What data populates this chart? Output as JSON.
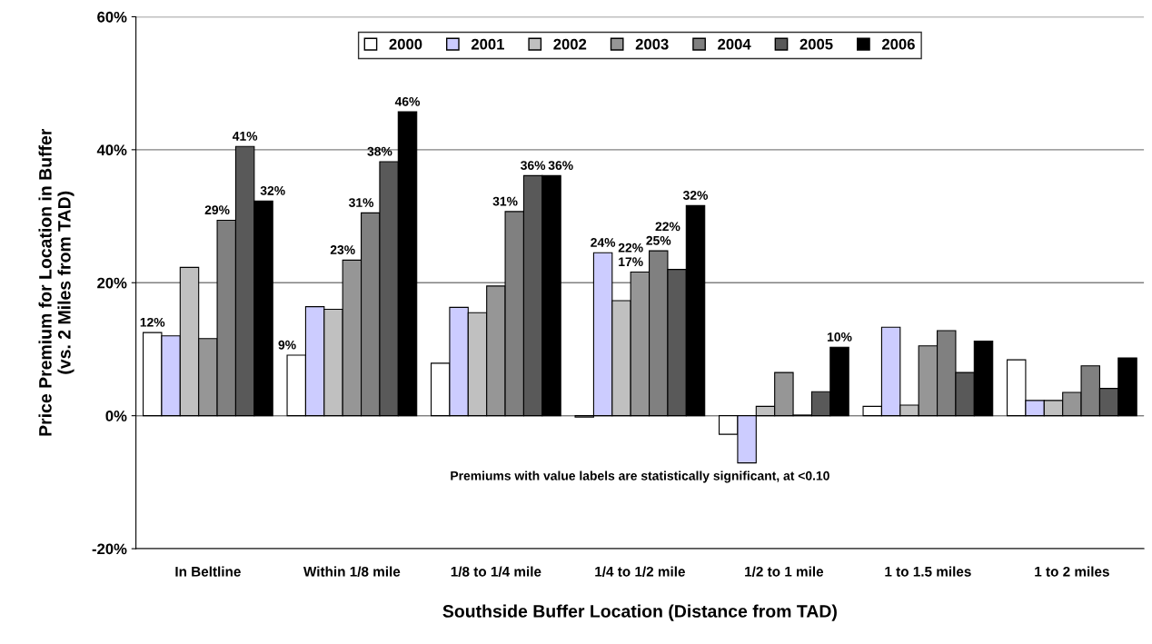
{
  "chart_data": {
    "type": "bar",
    "xlabel": "Southside Buffer Location (Distance from TAD)",
    "ylabel": "Price Premium for Location in Buffer\n(vs. 2 Miles from TAD)",
    "categories": [
      "In Beltline",
      "Within 1/8 mile",
      "1/8 to 1/4 mile",
      "1/4 to 1/2 mile",
      "1/2 to 1 mile",
      "1 to 1.5 miles",
      "1 to 2 miles"
    ],
    "series": [
      {
        "name": "2000",
        "color": "#ffffff",
        "values": [
          12.5,
          9.1,
          7.9,
          -0.2,
          -2.8,
          1.4,
          8.4
        ],
        "value_labels": [
          "12%",
          "9%",
          null,
          null,
          null,
          null,
          null
        ]
      },
      {
        "name": "2001",
        "color": "#ccccff",
        "values": [
          12.0,
          16.4,
          16.3,
          24.5,
          -7.1,
          13.3,
          2.3
        ],
        "value_labels": [
          null,
          null,
          null,
          "24%",
          null,
          null,
          null
        ]
      },
      {
        "name": "2002",
        "color": "#c0c0c0",
        "values": [
          22.3,
          16.0,
          15.5,
          17.3,
          1.4,
          1.6,
          2.3
        ],
        "value_labels": [
          null,
          null,
          null,
          "17%",
          null,
          null,
          null
        ]
      },
      {
        "name": "2003",
        "color": "#969696",
        "values": [
          11.6,
          23.4,
          19.5,
          21.6,
          6.5,
          10.5,
          3.5
        ],
        "value_labels": [
          null,
          "23%",
          null,
          "22%",
          null,
          null,
          null
        ]
      },
      {
        "name": "2004",
        "color": "#808080",
        "values": [
          29.4,
          30.5,
          30.7,
          24.8,
          0.1,
          12.8,
          7.5
        ],
        "value_labels": [
          "29%",
          "31%",
          "31%",
          "25%",
          null,
          null,
          null
        ]
      },
      {
        "name": "2005",
        "color": "#595959",
        "values": [
          40.5,
          38.2,
          36.1,
          22.0,
          3.6,
          6.5,
          4.1
        ],
        "value_labels": [
          "41%",
          "38%",
          "36%",
          "22%",
          null,
          null,
          null
        ]
      },
      {
        "name": "2006",
        "color": "#000000",
        "values": [
          32.3,
          45.7,
          36.1,
          31.6,
          10.3,
          11.2,
          8.7
        ],
        "value_labels": [
          "32%",
          "46%",
          "36%",
          "32%",
          "10%",
          null,
          null
        ]
      }
    ],
    "ylim": [
      -20,
      60
    ],
    "yticks": [
      {
        "value": -20,
        "label": "-20%"
      },
      {
        "value": 0,
        "label": "0%"
      },
      {
        "value": 20,
        "label": "20%"
      },
      {
        "value": 40,
        "label": "40%"
      },
      {
        "value": 60,
        "label": "60%"
      }
    ],
    "grid": "y",
    "legend": "top",
    "annotations": [
      "Premiums with value labels are statistically significant, at <0.10"
    ]
  }
}
